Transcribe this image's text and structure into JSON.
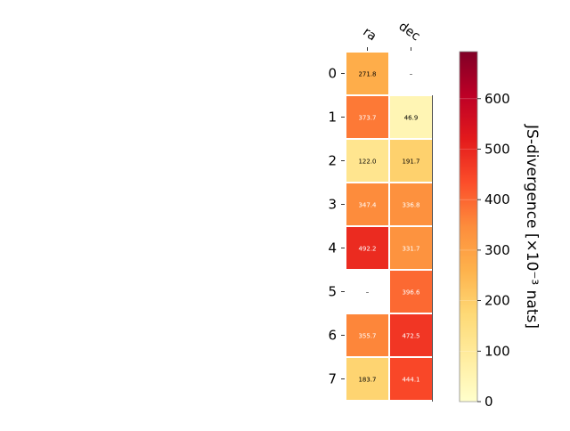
{
  "chart_data": {
    "type": "heatmap",
    "columns": [
      "ra",
      "dec"
    ],
    "rows": [
      "0",
      "1",
      "2",
      "3",
      "4",
      "5",
      "6",
      "7"
    ],
    "values": [
      [
        271.8,
        null
      ],
      [
        373.7,
        46.9
      ],
      [
        122.0,
        191.7
      ],
      [
        347.4,
        336.8
      ],
      [
        492.2,
        331.7
      ],
      [
        null,
        396.6
      ],
      [
        355.7,
        472.5
      ],
      [
        183.7,
        444.1
      ]
    ],
    "missing_label": "–",
    "colorbar": {
      "label": "JS-divergence [×10⁻³ nats]",
      "min": 0,
      "max": 693.1,
      "ticks": [
        0,
        100,
        200,
        300,
        400,
        500,
        600
      ],
      "colormap": "YlOrRd",
      "stops": [
        "#ffffcc",
        "#ffeda0",
        "#fed976",
        "#feb24c",
        "#fd8d3c",
        "#fc4e2a",
        "#e31a1c",
        "#bd0026",
        "#800026"
      ]
    }
  }
}
